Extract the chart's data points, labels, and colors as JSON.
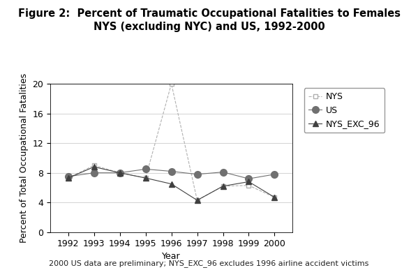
{
  "title_line1": "Figure 2:  Percent of Traumatic Occupational Fatalities to Females",
  "title_line2": "NYS (excluding NYC) and US, 1992-2000",
  "xlabel": "Year",
  "ylabel": "Percent of Total Occupational Fatalities",
  "footnote": "2000 US data are preliminary; NYS_EXC_96 excludes 1996 airline accident victims",
  "years": [
    1992,
    1993,
    1994,
    1995,
    1996,
    1997,
    1998,
    1999,
    2000
  ],
  "NYS": [
    7.3,
    9.0,
    8.0,
    7.3,
    20.0,
    4.3,
    6.2,
    6.3,
    4.7
  ],
  "US": [
    7.5,
    8.0,
    8.0,
    8.5,
    8.2,
    7.8,
    8.1,
    7.2,
    7.8
  ],
  "NYS_EXC_96": [
    7.3,
    8.8,
    8.0,
    7.3,
    6.5,
    4.3,
    6.2,
    6.8,
    4.7
  ],
  "ylim": [
    0,
    20
  ],
  "yticks": [
    0,
    4,
    8,
    12,
    16,
    20
  ],
  "nys_color": "#b0b0b0",
  "us_color": "#707070",
  "nys_exc_color": "#404040",
  "background_color": "#ffffff",
  "title_fontsize": 10.5,
  "axis_label_fontsize": 9,
  "tick_fontsize": 9,
  "legend_fontsize": 9,
  "footnote_fontsize": 8
}
